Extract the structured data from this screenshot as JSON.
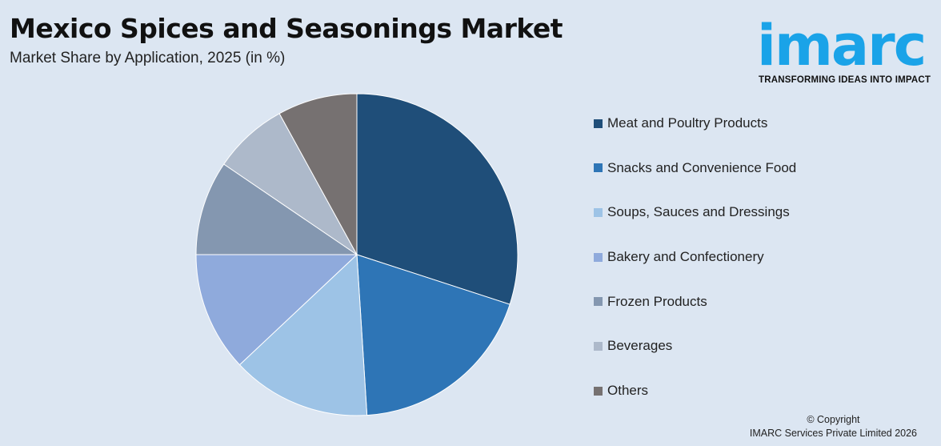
{
  "header": {
    "title": "Mexico Spices and Seasonings Market",
    "subtitle": "Market Share by Application, 2025 (in %)"
  },
  "logo": {
    "word": "imarc",
    "tagline": "TRANSFORMING IDEAS INTO IMPACT",
    "color": "#1aa3e8"
  },
  "chart_data": {
    "type": "pie",
    "title": "Mexico Spices and Seasonings Market",
    "subtitle": "Market Share by Application, 2025 (in %)",
    "categories": [
      "Meat and Poultry Products",
      "Snacks and Convenience Food",
      "Soups, Sauces and Dressings",
      "Bakery and Confectionery",
      "Frozen Products",
      "Beverages",
      "Others"
    ],
    "values": [
      30,
      19,
      14,
      12,
      9.5,
      7.5,
      8
    ],
    "colors": [
      "#1f4e79",
      "#2e75b6",
      "#9dc3e6",
      "#8faadc",
      "#8497b0",
      "#adb9ca",
      "#767171"
    ],
    "legend_position": "right"
  },
  "footer": {
    "copyright_line1": "© Copyright",
    "copyright_line2": "IMARC Services Private Limited 2026"
  }
}
